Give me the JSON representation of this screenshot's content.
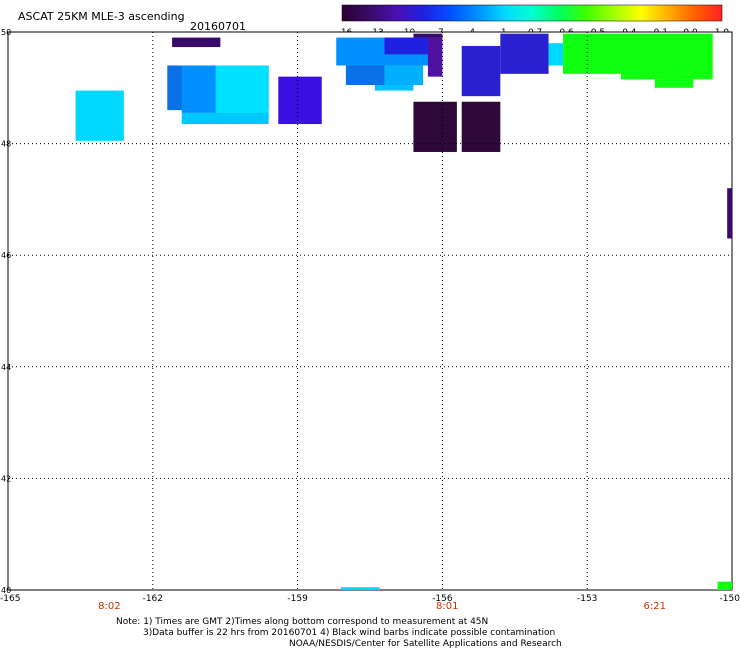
{
  "header": {
    "title": "ASCAT 25KM MLE-3 ascending",
    "date": "20160701"
  },
  "colorbar": {
    "labels": [
      "-16",
      "-13",
      "-10",
      "-7",
      "-4",
      "-1",
      "-0.7",
      "-0.6",
      "-0.5",
      "-0.4",
      "-0.1",
      "0.0",
      "1.0"
    ],
    "stops": [
      "#2a0030",
      "#3a0a6a",
      "#4a10b0",
      "#2020e0",
      "#0050ff",
      "#0090ff",
      "#00d8ff",
      "#00ffd0",
      "#00ff60",
      "#40ff00",
      "#a0ff00",
      "#ffff00",
      "#ffb000",
      "#ff6000",
      "#ff2020"
    ]
  },
  "map": {
    "lon_range": [
      -165,
      -150
    ],
    "lat_range": [
      40,
      50
    ],
    "lon_ticks": [
      {
        "value": -165,
        "label": "-165"
      },
      {
        "value": -162,
        "label": "-162"
      },
      {
        "value": -159,
        "label": "-159"
      },
      {
        "value": -156,
        "label": "-156"
      },
      {
        "value": -153,
        "label": "-153"
      },
      {
        "value": -150,
        "label": "-150"
      }
    ],
    "lat_ticks": [
      {
        "value": 40,
        "label": "40"
      },
      {
        "value": 42,
        "label": "42"
      },
      {
        "value": 44,
        "label": "44"
      },
      {
        "value": 46,
        "label": "46"
      },
      {
        "value": 48,
        "label": "48"
      },
      {
        "value": 50,
        "label": "50"
      }
    ],
    "time_labels": [
      {
        "lon": -162.9,
        "label": "8:02"
      },
      {
        "lon": -155.9,
        "label": "8:01"
      },
      {
        "lon": -151.6,
        "label": "6:21"
      }
    ],
    "cells": [
      {
        "lon0": -163.6,
        "lon1": -162.6,
        "lat0": 48.05,
        "lat1": 48.95,
        "color": "#00d8ff"
      },
      {
        "lon0": -161.6,
        "lon1": -160.6,
        "lat0": 49.73,
        "lat1": 49.9,
        "color": "#3a0a6a"
      },
      {
        "lon0": -161.7,
        "lon1": -159.6,
        "lat0": 48.6,
        "lat1": 49.4,
        "color": "#0a70e8"
      },
      {
        "lon0": -161.4,
        "lon1": -160.7,
        "lat0": 48.55,
        "lat1": 49.4,
        "color": "#0090ff"
      },
      {
        "lon0": -160.7,
        "lon1": -159.6,
        "lat0": 48.45,
        "lat1": 49.4,
        "color": "#00e0ff"
      },
      {
        "lon0": -161.4,
        "lon1": -159.6,
        "lat0": 48.35,
        "lat1": 48.55,
        "color": "#00c8ff"
      },
      {
        "lon0": -159.4,
        "lon1": -158.5,
        "lat0": 48.35,
        "lat1": 49.2,
        "color": "#3a10e0"
      },
      {
        "lon0": -158.2,
        "lon1": -156.1,
        "lat0": 49.4,
        "lat1": 49.9,
        "color": "#0090ff"
      },
      {
        "lon0": -158.0,
        "lon1": -157.2,
        "lat0": 49.05,
        "lat1": 49.4,
        "color": "#0a70e8"
      },
      {
        "lon0": -157.2,
        "lon1": -156.4,
        "lat0": 49.05,
        "lat1": 49.4,
        "color": "#00b0ff"
      },
      {
        "lon0": -157.4,
        "lon1": -156.6,
        "lat0": 48.95,
        "lat1": 49.05,
        "color": "#00c0ff"
      },
      {
        "lon0": -157.2,
        "lon1": -156.3,
        "lat0": 49.6,
        "lat1": 49.9,
        "color": "#2020e0"
      },
      {
        "lon0": -156.3,
        "lon1": -156.0,
        "lat0": 49.2,
        "lat1": 49.9,
        "color": "#5010a0"
      },
      {
        "lon0": -156.6,
        "lon1": -156.0,
        "lat0": 49.9,
        "lat1": 49.97,
        "color": "#3a0a6a"
      },
      {
        "lon0": -155.6,
        "lon1": -154.8,
        "lat0": 48.85,
        "lat1": 49.75,
        "color": "#2a20d0"
      },
      {
        "lon0": -154.8,
        "lon1": -153.8,
        "lat0": 49.25,
        "lat1": 49.97,
        "color": "#2a20d0"
      },
      {
        "lon0": -153.8,
        "lon1": -153.5,
        "lat0": 49.4,
        "lat1": 49.8,
        "color": "#00d8ff"
      },
      {
        "lon0": -153.5,
        "lon1": -152.3,
        "lat0": 49.25,
        "lat1": 49.97,
        "color": "#10ff10"
      },
      {
        "lon0": -152.3,
        "lon1": -150.4,
        "lat0": 49.15,
        "lat1": 49.97,
        "color": "#10ff10"
      },
      {
        "lon0": -151.6,
        "lon1": -150.8,
        "lat0": 49.0,
        "lat1": 49.15,
        "color": "#10ff10"
      },
      {
        "lon0": -156.6,
        "lon1": -155.7,
        "lat0": 47.85,
        "lat1": 48.75,
        "color": "#2e0838"
      },
      {
        "lon0": -155.6,
        "lon1": -154.8,
        "lat0": 47.85,
        "lat1": 48.75,
        "color": "#2e0838"
      },
      {
        "lon0": -150.1,
        "lon1": -150.0,
        "lat0": 46.3,
        "lat1": 47.2,
        "color": "#3a0a6a"
      },
      {
        "lon0": -150.3,
        "lon1": -150.0,
        "lat0": 40.0,
        "lat1": 40.15,
        "color": "#10ff10"
      },
      {
        "lon0": -158.1,
        "lon1": -157.3,
        "lat0": 40.0,
        "lat1": 40.05,
        "color": "#00d8ff"
      }
    ]
  },
  "footer": {
    "note_line1": "Note: 1) Times are GMT 2)Times along bottom correspond to measurement at 45N",
    "note_line2": "3)Data buffer is 22 hrs from 20160701 4) Black wind barbs indicate possible contamination",
    "credit": "NOAA/NESDIS/Center for Satellite Applications and Research"
  }
}
